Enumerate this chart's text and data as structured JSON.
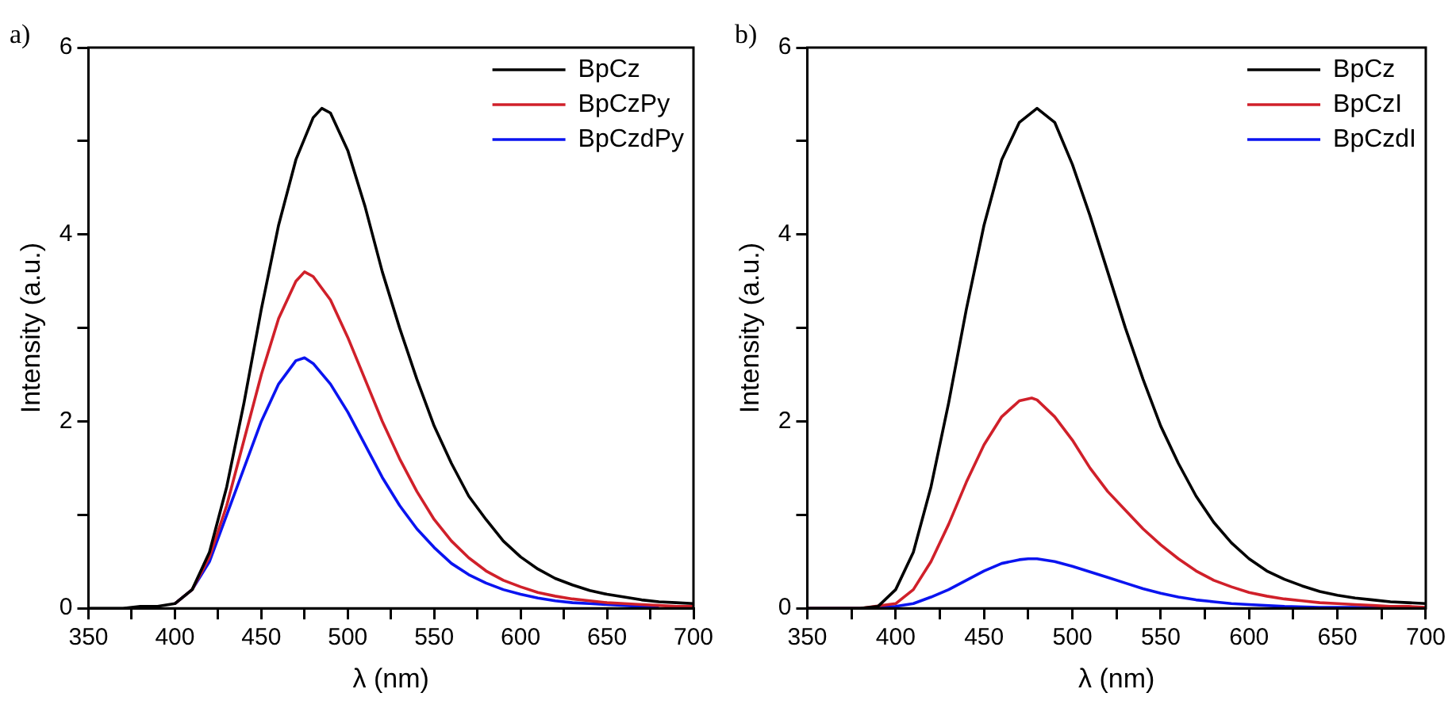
{
  "chart_data": [
    {
      "type": "line",
      "title": "a)",
      "xlabel": "λ (nm)",
      "ylabel": "Intensity (a.u.)",
      "xlim": [
        350,
        700
      ],
      "ylim": [
        0,
        6
      ],
      "xticks": [
        350,
        {
          "value": 375,
          "label": null
        },
        400,
        {
          "value": 425,
          "label": null
        },
        450,
        {
          "value": 475,
          "label": null
        },
        500,
        {
          "value": 525,
          "label": null
        },
        550,
        {
          "value": 575,
          "label": null
        },
        600,
        {
          "value": 625,
          "label": null
        },
        650,
        {
          "value": 675,
          "label": null
        },
        700
      ],
      "yticks": [
        0,
        {
          "value": 1,
          "label": null
        },
        2,
        {
          "value": 3,
          "label": null
        },
        4,
        {
          "value": 5,
          "label": null
        },
        6
      ],
      "grid": false,
      "legend": "top right",
      "marker": "none",
      "line_style": "solid",
      "series": [
        {
          "name": "BpCz",
          "color": "#000000",
          "x": [
            350,
            360,
            370,
            380,
            390,
            400,
            410,
            420,
            430,
            440,
            450,
            460,
            470,
            480,
            485,
            490,
            500,
            510,
            520,
            530,
            540,
            550,
            560,
            570,
            580,
            590,
            600,
            610,
            620,
            630,
            640,
            650,
            660,
            670,
            680,
            690,
            700
          ],
          "values": [
            0,
            0,
            0,
            0.02,
            0.02,
            0.05,
            0.2,
            0.6,
            1.3,
            2.2,
            3.2,
            4.1,
            4.8,
            5.25,
            5.35,
            5.3,
            4.9,
            4.3,
            3.6,
            3.0,
            2.45,
            1.95,
            1.55,
            1.2,
            0.95,
            0.72,
            0.55,
            0.42,
            0.32,
            0.25,
            0.19,
            0.15,
            0.12,
            0.09,
            0.07,
            0.06,
            0.05
          ]
        },
        {
          "name": "BpCzPy",
          "color": "#d0202a",
          "x": [
            400,
            410,
            420,
            430,
            440,
            450,
            460,
            470,
            475,
            480,
            490,
            500,
            510,
            520,
            530,
            540,
            550,
            560,
            570,
            580,
            590,
            600,
            610,
            620,
            630,
            640,
            650,
            660,
            670,
            680,
            690,
            700
          ],
          "values": [
            0.05,
            0.2,
            0.55,
            1.1,
            1.8,
            2.5,
            3.1,
            3.5,
            3.6,
            3.55,
            3.3,
            2.9,
            2.45,
            2.0,
            1.6,
            1.25,
            0.95,
            0.72,
            0.54,
            0.4,
            0.3,
            0.23,
            0.17,
            0.13,
            0.1,
            0.08,
            0.06,
            0.05,
            0.04,
            0.03,
            0.02,
            0.02
          ]
        },
        {
          "name": "BpCzdPy",
          "color": "#0a14f0",
          "x": [
            400,
            410,
            420,
            430,
            440,
            450,
            460,
            470,
            475,
            480,
            490,
            500,
            510,
            520,
            530,
            540,
            550,
            560,
            570,
            580,
            590,
            600,
            610,
            620,
            630,
            640,
            650,
            660,
            670,
            680
          ],
          "values": [
            0.05,
            0.2,
            0.5,
            1.0,
            1.5,
            2.0,
            2.4,
            2.65,
            2.68,
            2.62,
            2.4,
            2.1,
            1.75,
            1.4,
            1.1,
            0.85,
            0.65,
            0.48,
            0.36,
            0.27,
            0.2,
            0.15,
            0.11,
            0.08,
            0.06,
            0.05,
            0.04,
            0.03,
            0.02,
            0.02
          ]
        }
      ]
    },
    {
      "type": "line",
      "title": "b)",
      "xlabel": "λ (nm)",
      "ylabel": "Intensity (a.u.)",
      "xlim": [
        350,
        700
      ],
      "ylim": [
        0,
        6
      ],
      "xticks": [
        350,
        {
          "value": 375,
          "label": null
        },
        400,
        {
          "value": 425,
          "label": null
        },
        450,
        {
          "value": 475,
          "label": null
        },
        500,
        {
          "value": 525,
          "label": null
        },
        550,
        {
          "value": 575,
          "label": null
        },
        600,
        {
          "value": 625,
          "label": null
        },
        650,
        {
          "value": 675,
          "label": null
        },
        700
      ],
      "yticks": [
        0,
        {
          "value": 1,
          "label": null
        },
        2,
        {
          "value": 3,
          "label": null
        },
        4,
        {
          "value": 5,
          "label": null
        },
        6
      ],
      "grid": false,
      "legend": "top right",
      "marker": "none",
      "line_style": "solid",
      "series": [
        {
          "name": "BpCz",
          "color": "#000000",
          "x": [
            350,
            370,
            380,
            390,
            400,
            410,
            420,
            430,
            440,
            450,
            460,
            470,
            480,
            490,
            500,
            510,
            520,
            530,
            540,
            550,
            560,
            570,
            580,
            590,
            600,
            610,
            620,
            630,
            640,
            650,
            660,
            670,
            680,
            690,
            700
          ],
          "values": [
            0,
            0,
            0,
            0.02,
            0.2,
            0.6,
            1.3,
            2.2,
            3.2,
            4.1,
            4.8,
            5.2,
            5.35,
            5.2,
            4.75,
            4.2,
            3.6,
            3.0,
            2.45,
            1.95,
            1.55,
            1.2,
            0.92,
            0.7,
            0.53,
            0.4,
            0.31,
            0.24,
            0.18,
            0.14,
            0.11,
            0.09,
            0.07,
            0.06,
            0.05
          ]
        },
        {
          "name": "BpCzI",
          "color": "#d0202a",
          "x": [
            350,
            380,
            400,
            410,
            420,
            430,
            440,
            450,
            460,
            470,
            477,
            480,
            490,
            500,
            510,
            520,
            530,
            540,
            550,
            560,
            570,
            580,
            590,
            600,
            610,
            620,
            630,
            640,
            650,
            660,
            670,
            680,
            690,
            700
          ],
          "values": [
            0,
            0,
            0.05,
            0.2,
            0.5,
            0.9,
            1.35,
            1.75,
            2.05,
            2.22,
            2.25,
            2.23,
            2.05,
            1.8,
            1.5,
            1.25,
            1.05,
            0.85,
            0.68,
            0.53,
            0.4,
            0.3,
            0.23,
            0.17,
            0.13,
            0.1,
            0.08,
            0.06,
            0.05,
            0.04,
            0.03,
            0.02,
            0.02,
            0.01
          ]
        },
        {
          "name": "BpCzdI",
          "color": "#0a14f0",
          "x": [
            350,
            380,
            400,
            410,
            420,
            430,
            440,
            450,
            460,
            470,
            475,
            480,
            490,
            500,
            510,
            520,
            530,
            540,
            550,
            560,
            570,
            580,
            590,
            600,
            620,
            640,
            660,
            700
          ],
          "values": [
            0,
            0,
            0.02,
            0.05,
            0.12,
            0.2,
            0.3,
            0.4,
            0.48,
            0.52,
            0.53,
            0.53,
            0.5,
            0.45,
            0.39,
            0.33,
            0.27,
            0.21,
            0.16,
            0.12,
            0.09,
            0.07,
            0.05,
            0.04,
            0.02,
            0.01,
            0.01,
            0
          ]
        }
      ]
    }
  ]
}
